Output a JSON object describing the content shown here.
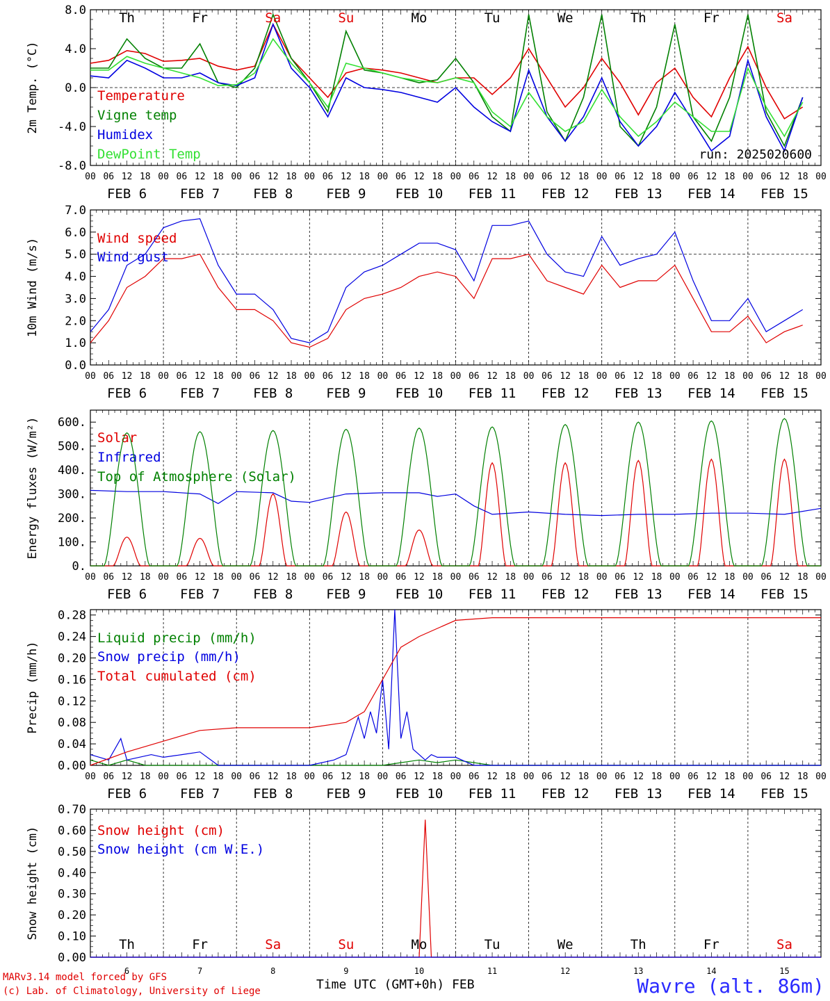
{
  "footer": {
    "credit_line1": "MARv3.14 model forced by GFS",
    "credit_line2": "(c) Lab. of Climatology, University of Liege",
    "xlabel": "Time UTC (GMT+0h) FEB",
    "station": "Wavre (alt. 86m)"
  },
  "time_axis": {
    "hour_ticks": [
      "00",
      "06",
      "12",
      "18"
    ],
    "day_labels": [
      "FEB  6",
      "FEB  7",
      "FEB  8",
      "FEB  9",
      "FEB 10",
      "FEB 11",
      "FEB 12",
      "FEB 13",
      "FEB 14",
      "FEB 15"
    ],
    "weekdays": [
      "Th",
      "Fr",
      "Sa",
      "Su",
      "Mo",
      "Tu",
      "We",
      "Th",
      "Fr",
      "Sa"
    ],
    "day_numbers": [
      "6",
      "7",
      "8",
      "9",
      "10",
      "11",
      "12",
      "13",
      "14",
      "15"
    ],
    "colors": {
      "weekday": "#000000",
      "weekend": "#e00000"
    }
  },
  "chart_data": [
    {
      "type": "line",
      "ylabel": "2m Temp. (°C)",
      "ylim": [
        -8,
        8
      ],
      "yticks": [
        "8.0",
        "4.0",
        "0.0",
        "-4.0",
        "-8.0"
      ],
      "ref_line": 0,
      "run_label": "run: 2025020600",
      "x_unit": "hours since FEB 6 00 UTC",
      "series": [
        {
          "name": "Temperature",
          "color": "#e00000",
          "x": [
            0,
            6,
            12,
            18,
            24,
            30,
            36,
            42,
            48,
            54,
            60,
            66,
            72,
            78,
            84,
            90,
            96,
            102,
            108,
            114,
            120,
            126,
            132,
            138,
            144,
            150,
            156,
            162,
            168,
            174,
            180,
            186,
            192,
            198,
            204,
            210,
            216,
            222,
            228,
            234
          ],
          "y": [
            2.5,
            2.8,
            3.8,
            3.5,
            2.7,
            2.8,
            3.0,
            2.2,
            1.8,
            2.2,
            6.5,
            3.0,
            1.0,
            -1.0,
            1.5,
            2.0,
            1.8,
            1.5,
            1.0,
            0.5,
            1.0,
            1.0,
            -0.7,
            1.0,
            4.0,
            1.0,
            -2.0,
            0.0,
            3.0,
            0.5,
            -2.8,
            0.5,
            2.0,
            -1.0,
            -3.0,
            1.0,
            4.2,
            0.0,
            -3.2,
            -2.0
          ]
        },
        {
          "name": "Vigne temp",
          "color": "#008000",
          "x": [
            0,
            6,
            12,
            18,
            24,
            30,
            36,
            42,
            48,
            54,
            60,
            66,
            72,
            78,
            84,
            90,
            96,
            102,
            108,
            114,
            120,
            126,
            132,
            138,
            144,
            150,
            156,
            162,
            168,
            174,
            180,
            186,
            192,
            198,
            204,
            210,
            216,
            222,
            228,
            234
          ],
          "y": [
            2.0,
            2.0,
            5.0,
            3.0,
            2.0,
            2.0,
            4.5,
            0.5,
            0.0,
            2.0,
            7.5,
            3.0,
            0.5,
            -2.5,
            5.8,
            1.8,
            1.5,
            1.0,
            0.5,
            0.8,
            3.0,
            0.5,
            -3.0,
            -4.5,
            7.5,
            -2.5,
            -5.5,
            -1.0,
            7.5,
            -4.0,
            -6.0,
            -2.0,
            6.5,
            -3.0,
            -5.5,
            -1.0,
            7.5,
            -2.5,
            -6.0,
            -1.0
          ]
        },
        {
          "name": "Humidex",
          "color": "#0000e0",
          "x": [
            0,
            6,
            12,
            18,
            24,
            30,
            36,
            42,
            48,
            54,
            60,
            66,
            72,
            78,
            84,
            90,
            96,
            102,
            108,
            114,
            120,
            126,
            132,
            138,
            144,
            150,
            156,
            162,
            168,
            174,
            180,
            186,
            192,
            198,
            204,
            210,
            216,
            222,
            228,
            234
          ],
          "y": [
            1.2,
            1.0,
            2.8,
            2.0,
            1.0,
            1.0,
            1.5,
            0.5,
            0.2,
            1.0,
            6.5,
            2.0,
            0.0,
            -3.0,
            1.0,
            0.0,
            -0.2,
            -0.5,
            -1.0,
            -1.5,
            0.0,
            -2.0,
            -3.5,
            -4.5,
            1.8,
            -3.0,
            -5.5,
            -3.0,
            1.0,
            -3.5,
            -6.0,
            -4.0,
            -0.5,
            -3.5,
            -6.5,
            -5.0,
            2.8,
            -3.0,
            -6.5,
            -1.0
          ]
        },
        {
          "name": "DewPoint Temp",
          "color": "#33e033",
          "x": [
            0,
            6,
            12,
            18,
            24,
            30,
            36,
            42,
            48,
            54,
            60,
            66,
            72,
            78,
            84,
            90,
            96,
            102,
            108,
            114,
            120,
            126,
            132,
            138,
            144,
            150,
            156,
            162,
            168,
            174,
            180,
            186,
            192,
            198,
            204,
            210,
            216,
            222,
            228,
            234
          ],
          "y": [
            1.8,
            1.8,
            3.2,
            2.5,
            2.0,
            1.5,
            1.0,
            0.2,
            0.3,
            1.5,
            5.0,
            2.5,
            0.5,
            -2.0,
            2.5,
            2.0,
            1.5,
            1.0,
            0.7,
            0.5,
            1.0,
            0.5,
            -2.5,
            -4.0,
            -0.5,
            -3.0,
            -4.5,
            -3.5,
            -0.2,
            -3.0,
            -5.0,
            -3.5,
            -1.5,
            -3.0,
            -4.5,
            -4.5,
            2.0,
            -2.0,
            -5.0,
            -1.5
          ]
        }
      ]
    },
    {
      "type": "line",
      "ylabel": "10m Wind (m/s)",
      "ylim": [
        0,
        7
      ],
      "yticks": [
        "7.0",
        "6.0",
        "5.0",
        "4.0",
        "3.0",
        "2.0",
        "1.0",
        "0.0"
      ],
      "ref_line": 5,
      "series": [
        {
          "name": "Wind speed",
          "color": "#e00000",
          "x": [
            0,
            6,
            12,
            18,
            24,
            30,
            36,
            42,
            48,
            54,
            60,
            66,
            72,
            78,
            84,
            90,
            96,
            102,
            108,
            114,
            120,
            126,
            132,
            138,
            144,
            150,
            156,
            162,
            168,
            174,
            180,
            186,
            192,
            198,
            204,
            210,
            216,
            222,
            228,
            234
          ],
          "y": [
            1.0,
            2.0,
            3.5,
            4.0,
            4.8,
            4.8,
            5.0,
            3.5,
            2.5,
            2.5,
            2.0,
            1.0,
            0.8,
            1.2,
            2.5,
            3.0,
            3.2,
            3.5,
            4.0,
            4.2,
            4.0,
            3.0,
            4.8,
            4.8,
            5.0,
            3.8,
            3.5,
            3.2,
            4.5,
            3.5,
            3.8,
            3.8,
            4.5,
            3.0,
            1.5,
            1.5,
            2.2,
            1.0,
            1.5,
            1.8
          ]
        },
        {
          "name": "Wind gust",
          "color": "#0000e0",
          "x": [
            0,
            6,
            12,
            18,
            24,
            30,
            36,
            42,
            48,
            54,
            60,
            66,
            72,
            78,
            84,
            90,
            96,
            102,
            108,
            114,
            120,
            126,
            132,
            138,
            144,
            150,
            156,
            162,
            168,
            174,
            180,
            186,
            192,
            198,
            204,
            210,
            216,
            222,
            228,
            234
          ],
          "y": [
            1.5,
            2.5,
            4.5,
            5.0,
            6.2,
            6.5,
            6.6,
            4.5,
            3.2,
            3.2,
            2.5,
            1.2,
            1.0,
            1.5,
            3.5,
            4.2,
            4.5,
            5.0,
            5.5,
            5.5,
            5.2,
            3.8,
            6.3,
            6.3,
            6.5,
            5.0,
            4.2,
            4.0,
            5.8,
            4.5,
            4.8,
            5.0,
            6.0,
            3.8,
            2.0,
            2.0,
            3.0,
            1.5,
            2.0,
            2.5
          ]
        }
      ]
    },
    {
      "type": "line",
      "ylabel": "Energy fluxes (W/m²)",
      "ylim": [
        0,
        650
      ],
      "yticks": [
        "600.",
        "500.",
        "400.",
        "300.",
        "200.",
        "100.",
        "0."
      ],
      "series": [
        {
          "name": "Solar",
          "color": "#e00000",
          "daily_peaks": [
            120,
            115,
            300,
            225,
            150,
            430,
            430,
            440,
            445,
            445
          ]
        },
        {
          "name": "Infrared",
          "color": "#0000e0",
          "x": [
            0,
            12,
            24,
            36,
            42,
            48,
            60,
            66,
            72,
            84,
            96,
            108,
            114,
            120,
            126,
            132,
            144,
            156,
            168,
            180,
            192,
            204,
            216,
            228,
            240
          ],
          "y": [
            315,
            310,
            310,
            300,
            260,
            310,
            305,
            270,
            265,
            300,
            305,
            305,
            290,
            300,
            250,
            215,
            225,
            215,
            210,
            215,
            215,
            220,
            220,
            215,
            240
          ]
        },
        {
          "name": "Top of Atmosphere (Solar)",
          "color": "#008000",
          "daily_peaks": [
            555,
            560,
            565,
            570,
            575,
            580,
            590,
            600,
            605,
            615
          ]
        }
      ]
    },
    {
      "type": "line",
      "ylabel": "Precip (mm/h)",
      "ylim": [
        0,
        0.29
      ],
      "yticks": [
        "0.28",
        "0.24",
        "0.20",
        "0.16",
        "0.12",
        "0.08",
        "0.04",
        "0.00"
      ],
      "series": [
        {
          "name": "Liquid precip (mm/h)",
          "color": "#008000",
          "x": [
            0,
            6,
            12,
            18,
            24,
            36,
            48,
            72,
            96,
            102,
            108,
            114,
            120,
            126,
            132,
            240
          ],
          "y": [
            0.01,
            0.0,
            0.01,
            0.0,
            0.0,
            0.0,
            0.0,
            0.0,
            0.0,
            0.005,
            0.01,
            0.005,
            0.01,
            0.005,
            0.0,
            0.0
          ]
        },
        {
          "name": "Snow precip (mm/h)",
          "color": "#0000e0",
          "x": [
            0,
            6,
            10,
            12,
            16,
            20,
            24,
            30,
            36,
            42,
            48,
            72,
            80,
            84,
            88,
            90,
            92,
            94,
            96,
            98,
            100,
            102,
            104,
            106,
            108,
            110,
            112,
            114,
            120,
            126,
            132,
            240
          ],
          "y": [
            0.02,
            0.01,
            0.05,
            0.01,
            0.015,
            0.02,
            0.015,
            0.02,
            0.025,
            0.0,
            0.0,
            0.0,
            0.01,
            0.02,
            0.09,
            0.05,
            0.1,
            0.06,
            0.16,
            0.03,
            0.29,
            0.05,
            0.1,
            0.03,
            0.02,
            0.01,
            0.02,
            0.015,
            0.015,
            0.0,
            0.0,
            0.0
          ]
        },
        {
          "name": "Total cumulated (cm)",
          "color": "#e00000",
          "x": [
            0,
            12,
            24,
            36,
            48,
            72,
            84,
            90,
            96,
            100,
            102,
            108,
            114,
            120,
            132,
            240
          ],
          "y": [
            0.0,
            0.025,
            0.045,
            0.065,
            0.07,
            0.07,
            0.08,
            0.1,
            0.16,
            0.2,
            0.22,
            0.24,
            0.255,
            0.27,
            0.275,
            0.275
          ]
        }
      ]
    },
    {
      "type": "line",
      "ylabel": "Snow height (cm)",
      "ylim": [
        0,
        0.7
      ],
      "yticks": [
        "0.70",
        "0.60",
        "0.50",
        "0.40",
        "0.30",
        "0.20",
        "0.10",
        "0.00"
      ],
      "series": [
        {
          "name": "Snow height (cm)",
          "color": "#e00000",
          "x": [
            0,
            108,
            110,
            112,
            114,
            240
          ],
          "y": [
            0.0,
            0.0,
            0.65,
            0.0,
            0.0,
            0.0
          ]
        },
        {
          "name": "Snow height (cm W.E.)",
          "color": "#0000e0",
          "x": [
            0,
            240
          ],
          "y": [
            0.0,
            0.0
          ]
        }
      ]
    }
  ]
}
